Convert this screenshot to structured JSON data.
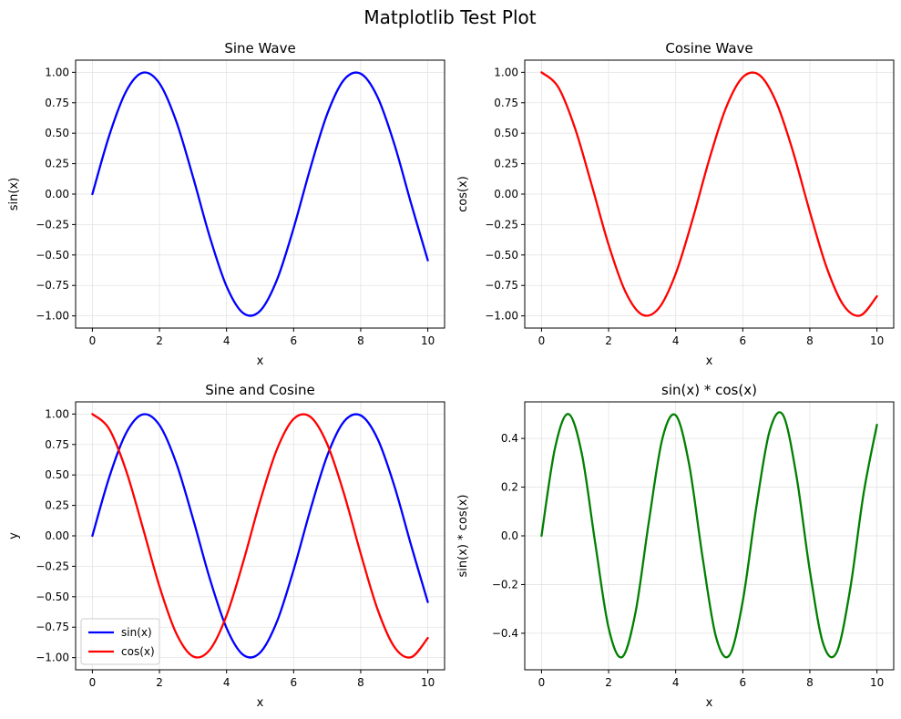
{
  "figure": {
    "title": "Matplotlib Test Plot"
  },
  "chart_data": [
    {
      "type": "line",
      "title": "Sine Wave",
      "xlabel": "x",
      "ylabel": "sin(x)",
      "xlim": [
        -0.5,
        10.5
      ],
      "ylim": [
        -1.1,
        1.1
      ],
      "xticks": [
        0,
        2,
        4,
        6,
        8,
        10
      ],
      "yticks": [
        -1.0,
        -0.75,
        -0.5,
        -0.25,
        0.0,
        0.25,
        0.5,
        0.75,
        1.0
      ],
      "xtick_labels": [
        "0",
        "2",
        "4",
        "6",
        "8",
        "10"
      ],
      "ytick_labels": [
        "−1.00",
        "−0.75",
        "−0.50",
        "−0.25",
        "0.00",
        "0.25",
        "0.50",
        "0.75",
        "1.00"
      ],
      "grid": true,
      "legend": null,
      "x": [
        0,
        0.5,
        1.0,
        1.5,
        2.0,
        2.5,
        3.0,
        3.5,
        4.0,
        4.5,
        5.0,
        5.5,
        6.0,
        6.5,
        7.0,
        7.5,
        8.0,
        8.5,
        9.0,
        9.5,
        10.0
      ],
      "series": [
        {
          "color": "#0000ff",
          "values": [
            0.0,
            0.479,
            0.841,
            0.997,
            0.909,
            0.598,
            0.141,
            -0.351,
            -0.757,
            -0.978,
            -0.959,
            -0.706,
            -0.279,
            0.215,
            0.657,
            0.938,
            0.989,
            0.798,
            0.412,
            -0.075,
            -0.544
          ]
        }
      ]
    },
    {
      "type": "line",
      "title": "Cosine Wave",
      "xlabel": "x",
      "ylabel": "cos(x)",
      "xlim": [
        -0.5,
        10.5
      ],
      "ylim": [
        -1.1,
        1.1
      ],
      "xticks": [
        0,
        2,
        4,
        6,
        8,
        10
      ],
      "yticks": [
        -1.0,
        -0.75,
        -0.5,
        -0.25,
        0.0,
        0.25,
        0.5,
        0.75,
        1.0
      ],
      "xtick_labels": [
        "0",
        "2",
        "4",
        "6",
        "8",
        "10"
      ],
      "ytick_labels": [
        "−1.00",
        "−0.75",
        "−0.50",
        "−0.25",
        "0.00",
        "0.25",
        "0.50",
        "0.75",
        "1.00"
      ],
      "grid": true,
      "legend": null,
      "x": [
        0,
        0.5,
        1.0,
        1.5,
        2.0,
        2.5,
        3.0,
        3.5,
        4.0,
        4.5,
        5.0,
        5.5,
        6.0,
        6.5,
        7.0,
        7.5,
        8.0,
        8.5,
        9.0,
        9.5,
        10.0
      ],
      "series": [
        {
          "color": "#ff0000",
          "values": [
            1.0,
            0.878,
            0.54,
            0.071,
            -0.416,
            -0.801,
            -0.99,
            -0.936,
            -0.654,
            -0.211,
            0.284,
            0.709,
            0.96,
            0.977,
            0.754,
            0.347,
            -0.146,
            -0.602,
            -0.911,
            -0.997,
            -0.839
          ]
        }
      ]
    },
    {
      "type": "line",
      "title": "Sine and Cosine",
      "xlabel": "x",
      "ylabel": "y",
      "xlim": [
        -0.5,
        10.5
      ],
      "ylim": [
        -1.1,
        1.1
      ],
      "xticks": [
        0,
        2,
        4,
        6,
        8,
        10
      ],
      "yticks": [
        -1.0,
        -0.75,
        -0.5,
        -0.25,
        0.0,
        0.25,
        0.5,
        0.75,
        1.0
      ],
      "xtick_labels": [
        "0",
        "2",
        "4",
        "6",
        "8",
        "10"
      ],
      "ytick_labels": [
        "−1.00",
        "−0.75",
        "−0.50",
        "−0.25",
        "0.00",
        "0.25",
        "0.50",
        "0.75",
        "1.00"
      ],
      "grid": true,
      "legend": "bottom-left",
      "x": [
        0,
        0.5,
        1.0,
        1.5,
        2.0,
        2.5,
        3.0,
        3.5,
        4.0,
        4.5,
        5.0,
        5.5,
        6.0,
        6.5,
        7.0,
        7.5,
        8.0,
        8.5,
        9.0,
        9.5,
        10.0
      ],
      "series": [
        {
          "name": "sin(x)",
          "color": "#0000ff",
          "values": [
            0.0,
            0.479,
            0.841,
            0.997,
            0.909,
            0.598,
            0.141,
            -0.351,
            -0.757,
            -0.978,
            -0.959,
            -0.706,
            -0.279,
            0.215,
            0.657,
            0.938,
            0.989,
            0.798,
            0.412,
            -0.075,
            -0.544
          ]
        },
        {
          "name": "cos(x)",
          "color": "#ff0000",
          "values": [
            1.0,
            0.878,
            0.54,
            0.071,
            -0.416,
            -0.801,
            -0.99,
            -0.936,
            -0.654,
            -0.211,
            0.284,
            0.709,
            0.96,
            0.977,
            0.754,
            0.347,
            -0.146,
            -0.602,
            -0.911,
            -0.997,
            -0.839
          ]
        }
      ]
    },
    {
      "type": "line",
      "title": "sin(x) * cos(x)",
      "xlabel": "x",
      "ylabel": "sin(x) * cos(x)",
      "xlim": [
        -0.5,
        10.5
      ],
      "ylim": [
        -0.55,
        0.55
      ],
      "xticks": [
        0,
        2,
        4,
        6,
        8,
        10
      ],
      "yticks": [
        -0.4,
        -0.2,
        0.0,
        0.2,
        0.4
      ],
      "xtick_labels": [
        "0",
        "2",
        "4",
        "6",
        "8",
        "10"
      ],
      "ytick_labels": [
        "−0.4",
        "−0.2",
        "0.0",
        "0.2",
        "0.4"
      ],
      "grid": true,
      "legend": null,
      "x": [
        0,
        0.4,
        0.8,
        1.2,
        1.6,
        2.0,
        2.4,
        2.8,
        3.2,
        3.6,
        4.0,
        4.4,
        4.8,
        5.2,
        5.6,
        6.0,
        6.4,
        6.8,
        7.2,
        7.6,
        8.0,
        8.4,
        8.8,
        9.2,
        9.6,
        10.0
      ],
      "series": [
        {
          "color": "#008000",
          "values": [
            0.0,
            0.359,
            0.5,
            0.338,
            -0.029,
            -0.378,
            -0.498,
            -0.316,
            0.058,
            0.397,
            0.495,
            0.294,
            -0.087,
            -0.414,
            -0.491,
            -0.268,
            0.115,
            0.43,
            0.496,
            0.246,
            -0.144,
            -0.444,
            -0.478,
            -0.22,
            0.172,
            0.456
          ]
        }
      ]
    }
  ]
}
